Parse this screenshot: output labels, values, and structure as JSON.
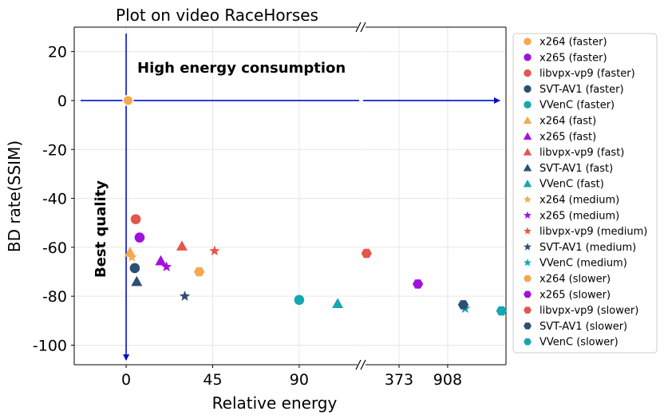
{
  "chart_data": {
    "type": "scatter",
    "title": "Plot on video RaceHorses",
    "xlabel": "Relative energy",
    "ylabel": "BD rate(SSIM)",
    "ylim": [
      -108,
      30
    ],
    "y_ticks": [
      20,
      0,
      -20,
      -40,
      -60,
      -80,
      -100
    ],
    "x_axis_segments": [
      {
        "name": "left",
        "xlim": [
          -27,
          122
        ],
        "ticks": [
          0,
          45,
          90
        ]
      },
      {
        "name": "right",
        "xlim": [
          -40,
          1550
        ],
        "ticks": [
          373,
          908
        ]
      }
    ],
    "x_break": true,
    "grid": true,
    "legend_position": "outside-right",
    "annotations": {
      "top": "High energy consumption",
      "left": "Best quality"
    },
    "markers": {
      "faster": "circle",
      "fast": "triangle",
      "medium": "star",
      "slower": "hexagon"
    },
    "colors": {
      "x264": "#f5a94d",
      "x265": "#a011e0",
      "libvpx-vp9": "#e2574c",
      "SVT-AV1": "#2c4f72",
      "VVenC": "#15a7b1"
    },
    "series": [
      {
        "name": "x264 (faster)",
        "codec": "x264",
        "preset": "faster",
        "segment": "left",
        "points": [
          [
            1,
            0
          ]
        ]
      },
      {
        "name": "x265 (faster)",
        "codec": "x265",
        "preset": "faster",
        "segment": "left",
        "points": [
          [
            7,
            -56
          ]
        ]
      },
      {
        "name": "libvpx-vp9 (faster)",
        "codec": "libvpx-vp9",
        "preset": "faster",
        "segment": "left",
        "points": [
          [
            5,
            -48.5
          ]
        ]
      },
      {
        "name": "SVT-AV1 (faster)",
        "codec": "SVT-AV1",
        "preset": "faster",
        "segment": "left",
        "points": [
          [
            4.5,
            -68.5
          ]
        ]
      },
      {
        "name": "VVenC (faster)",
        "codec": "VVenC",
        "preset": "faster",
        "segment": "left",
        "points": [
          [
            90,
            -81.5
          ]
        ]
      },
      {
        "name": "x264 (fast)",
        "codec": "x264",
        "preset": "fast",
        "segment": "left",
        "points": [
          [
            2,
            -62
          ]
        ]
      },
      {
        "name": "x265 (fast)",
        "codec": "x265",
        "preset": "fast",
        "segment": "left",
        "points": [
          [
            18,
            -65.5
          ]
        ]
      },
      {
        "name": "libvpx-vp9 (fast)",
        "codec": "libvpx-vp9",
        "preset": "fast",
        "segment": "left",
        "points": [
          [
            29,
            -59.5
          ]
        ]
      },
      {
        "name": "SVT-AV1 (fast)",
        "codec": "SVT-AV1",
        "preset": "fast",
        "segment": "left",
        "points": [
          [
            5.5,
            -74
          ]
        ]
      },
      {
        "name": "VVenC (fast)",
        "codec": "VVenC",
        "preset": "fast",
        "segment": "left",
        "points": [
          [
            110,
            -83
          ]
        ]
      },
      {
        "name": "x264 (medium)",
        "codec": "x264",
        "preset": "medium",
        "segment": "left",
        "points": [
          [
            3,
            -64
          ]
        ]
      },
      {
        "name": "x265 (medium)",
        "codec": "x265",
        "preset": "medium",
        "segment": "left",
        "points": [
          [
            21,
            -68
          ]
        ]
      },
      {
        "name": "libvpx-vp9 (medium)",
        "codec": "libvpx-vp9",
        "preset": "medium",
        "segment": "left",
        "points": [
          [
            46,
            -61.5
          ]
        ]
      },
      {
        "name": "SVT-AV1 (medium)",
        "codec": "SVT-AV1",
        "preset": "medium",
        "segment": "left",
        "points": [
          [
            30.5,
            -80
          ]
        ]
      },
      {
        "name": "VVenC (medium)",
        "codec": "VVenC",
        "preset": "medium",
        "segment": "right",
        "points": [
          [
            1100,
            -85
          ]
        ]
      },
      {
        "name": "x264 (slower)",
        "codec": "x264",
        "preset": "slower",
        "segment": "left",
        "points": [
          [
            38,
            -70
          ]
        ]
      },
      {
        "name": "x265 (slower)",
        "codec": "x265",
        "preset": "slower",
        "segment": "right",
        "points": [
          [
            580,
            -75
          ]
        ]
      },
      {
        "name": "libvpx-vp9 (slower)",
        "codec": "libvpx-vp9",
        "preset": "slower",
        "segment": "right",
        "points": [
          [
            15,
            -62.5
          ]
        ]
      },
      {
        "name": "SVT-AV1 (slower)",
        "codec": "SVT-AV1",
        "preset": "slower",
        "segment": "right",
        "points": [
          [
            1080,
            -83.5
          ]
        ]
      },
      {
        "name": "VVenC (slower)",
        "codec": "VVenC",
        "preset": "slower",
        "segment": "right",
        "points": [
          [
            1500,
            -86
          ]
        ]
      }
    ]
  }
}
